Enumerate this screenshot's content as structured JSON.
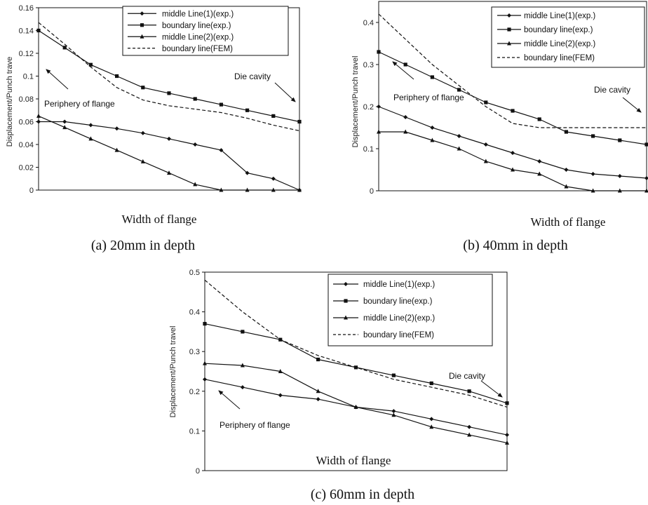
{
  "chart_data": [
    {
      "type": "line",
      "xlabel": "Width of flange",
      "ylabel": "Displacement/Punch trave",
      "caption": "(a) 20mm in depth",
      "ylim": [
        0,
        0.16
      ],
      "yticks": [
        "0",
        "0.02",
        "0.04",
        "0.06",
        "0.08",
        "0.1",
        "0.12",
        "0.14",
        "0.16"
      ],
      "legend": "top-right",
      "series": [
        {
          "name": "middle Line(1)(exp.)",
          "marker": "diamond",
          "dash": "solid",
          "x": [
            0,
            0.1,
            0.2,
            0.3,
            0.4,
            0.5,
            0.6,
            0.7,
            0.8,
            0.9,
            1.0
          ],
          "y": [
            0.06,
            0.06,
            0.057,
            0.054,
            0.05,
            0.045,
            0.04,
            0.035,
            0.015,
            0.01,
            0.0
          ]
        },
        {
          "name": "boundary line(exp.)",
          "marker": "square",
          "dash": "solid",
          "x": [
            0,
            0.1,
            0.2,
            0.3,
            0.4,
            0.5,
            0.6,
            0.7,
            0.8,
            0.9,
            1.0
          ],
          "y": [
            0.14,
            0.125,
            0.11,
            0.1,
            0.09,
            0.085,
            0.08,
            0.075,
            0.07,
            0.065,
            0.06
          ]
        },
        {
          "name": "middle Line(2)(exp.)",
          "marker": "triangle",
          "dash": "solid",
          "x": [
            0,
            0.1,
            0.2,
            0.3,
            0.4,
            0.5,
            0.6,
            0.7,
            0.8,
            0.9,
            1.0
          ],
          "y": [
            0.065,
            0.055,
            0.045,
            0.035,
            0.025,
            0.015,
            0.005,
            0.0,
            0.0,
            0.0,
            0.0
          ]
        },
        {
          "name": "boundary line(FEM)",
          "marker": "none",
          "dash": "dashed",
          "x": [
            0,
            0.1,
            0.2,
            0.3,
            0.4,
            0.5,
            0.6,
            0.7,
            0.8,
            0.9,
            1.0
          ],
          "y": [
            0.147,
            0.128,
            0.108,
            0.09,
            0.079,
            0.074,
            0.071,
            0.068,
            0.063,
            0.057,
            0.052
          ]
        }
      ],
      "annotations": [
        {
          "text": "Periphery of flange",
          "arrow": "to-left-end"
        },
        {
          "text": "Die cavity",
          "arrow": "to-right-end"
        }
      ]
    },
    {
      "type": "line",
      "xlabel": "Width of flange",
      "ylabel": "Displacement/Punch travel",
      "caption": "(b) 40mm in depth",
      "ylim": [
        0,
        0.45
      ],
      "yticks": [
        "0",
        "0.1",
        "0.2",
        "0.3",
        "0.4"
      ],
      "legend": "top-right",
      "series": [
        {
          "name": "middle Line(1)(exp.)",
          "marker": "diamond",
          "dash": "solid",
          "x": [
            0,
            0.1,
            0.2,
            0.3,
            0.4,
            0.5,
            0.6,
            0.7,
            0.8,
            0.9,
            1.0
          ],
          "y": [
            0.2,
            0.175,
            0.15,
            0.13,
            0.11,
            0.09,
            0.07,
            0.05,
            0.04,
            0.035,
            0.03
          ]
        },
        {
          "name": "boundary line(exp.)",
          "marker": "square",
          "dash": "solid",
          "x": [
            0,
            0.1,
            0.2,
            0.3,
            0.4,
            0.5,
            0.6,
            0.7,
            0.8,
            0.9,
            1.0
          ],
          "y": [
            0.33,
            0.3,
            0.27,
            0.24,
            0.21,
            0.19,
            0.17,
            0.14,
            0.13,
            0.12,
            0.11
          ]
        },
        {
          "name": "middle Line(2)(exp.)",
          "marker": "triangle",
          "dash": "solid",
          "x": [
            0,
            0.1,
            0.2,
            0.3,
            0.4,
            0.5,
            0.6,
            0.7,
            0.8,
            0.9,
            1.0
          ],
          "y": [
            0.14,
            0.14,
            0.12,
            0.1,
            0.07,
            0.05,
            0.04,
            0.01,
            0.0,
            0.0,
            0.0
          ]
        },
        {
          "name": "boundary line(FEM)",
          "marker": "none",
          "dash": "dashed",
          "x": [
            0,
            0.1,
            0.2,
            0.3,
            0.4,
            0.5,
            0.6,
            0.7,
            0.8,
            0.9,
            1.0
          ],
          "y": [
            0.42,
            0.36,
            0.3,
            0.25,
            0.2,
            0.16,
            0.15,
            0.15,
            0.15,
            0.15,
            0.15
          ]
        }
      ],
      "annotations": [
        {
          "text": "Periphery of flange",
          "arrow": "to-left-end"
        },
        {
          "text": "Die cavity",
          "arrow": "to-right-end"
        }
      ]
    },
    {
      "type": "line",
      "xlabel": "Width of flange",
      "ylabel": "Displacement/Punch travel",
      "caption": "(c) 60mm in depth",
      "ylim": [
        0,
        0.5
      ],
      "yticks": [
        "0",
        "0.1",
        "0.2",
        "0.3",
        "0.4",
        "0.5"
      ],
      "legend": "top-right",
      "series": [
        {
          "name": "middle Line(1)(exp.)",
          "marker": "diamond",
          "dash": "solid",
          "x": [
            0,
            0.125,
            0.25,
            0.375,
            0.5,
            0.625,
            0.75,
            0.875,
            1.0
          ],
          "y": [
            0.23,
            0.21,
            0.19,
            0.18,
            0.16,
            0.15,
            0.13,
            0.11,
            0.09
          ]
        },
        {
          "name": "boundary line(exp.)",
          "marker": "square",
          "dash": "solid",
          "x": [
            0,
            0.125,
            0.25,
            0.375,
            0.5,
            0.625,
            0.75,
            0.875,
            1.0
          ],
          "y": [
            0.37,
            0.35,
            0.33,
            0.28,
            0.26,
            0.24,
            0.22,
            0.2,
            0.17
          ]
        },
        {
          "name": "middle Line(2)(exp.)",
          "marker": "triangle",
          "dash": "solid",
          "x": [
            0,
            0.125,
            0.25,
            0.375,
            0.5,
            0.625,
            0.75,
            0.875,
            1.0
          ],
          "y": [
            0.27,
            0.265,
            0.25,
            0.2,
            0.16,
            0.14,
            0.11,
            0.09,
            0.07
          ]
        },
        {
          "name": "boundary line(FEM)",
          "marker": "none",
          "dash": "dashed",
          "x": [
            0,
            0.125,
            0.25,
            0.375,
            0.5,
            0.625,
            0.75,
            0.875,
            1.0
          ],
          "y": [
            0.48,
            0.4,
            0.33,
            0.29,
            0.26,
            0.23,
            0.21,
            0.19,
            0.16
          ]
        }
      ],
      "annotations": [
        {
          "text": "Periphery of flange",
          "arrow": "to-left-end"
        },
        {
          "text": "Die cavity",
          "arrow": "to-right-end"
        }
      ]
    }
  ]
}
